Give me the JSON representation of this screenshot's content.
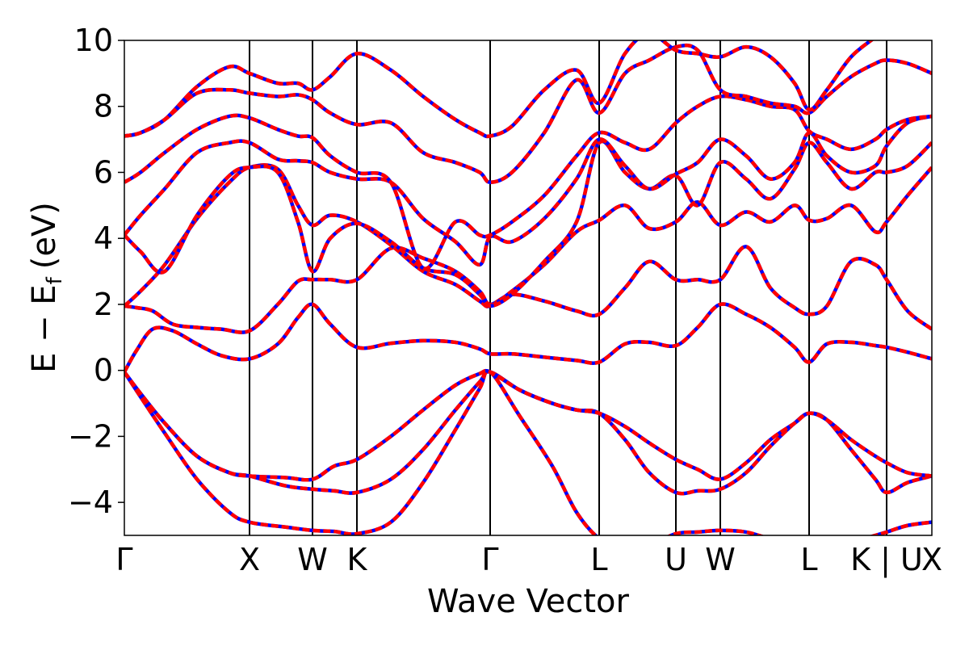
{
  "chart_data": {
    "type": "line",
    "xlabel": "Wave Vector",
    "ylabel_main": "E  −  E",
    "ylabel_sub": "f",
    "ylabel_unit": "(eV)",
    "ylim": [
      -5,
      10
    ],
    "yticks": [
      {
        "value": 10,
        "label": "10"
      },
      {
        "value": 8,
        "label": "8"
      },
      {
        "value": 6,
        "label": "6"
      },
      {
        "value": 4,
        "label": "4"
      },
      {
        "value": 2,
        "label": "2"
      },
      {
        "value": 0,
        "label": "0"
      },
      {
        "value": -2,
        "label": "−2"
      },
      {
        "value": -4,
        "label": "−4"
      }
    ],
    "xlim": [
      0,
      1000
    ],
    "high_symmetry_points": [
      {
        "label": "Γ",
        "x": 0
      },
      {
        "label": "X",
        "x": 155
      },
      {
        "label": "W",
        "x": 233
      },
      {
        "label": "K",
        "x": 288
      },
      {
        "label": "Γ",
        "x": 453
      },
      {
        "label": "L",
        "x": 588
      },
      {
        "label": "U",
        "x": 683
      },
      {
        "label": "W",
        "x": 738
      },
      {
        "label": "L",
        "x": 848
      },
      {
        "label": "K | U",
        "x": 944
      },
      {
        "label": "X",
        "x": 1000
      }
    ],
    "series_style": [
      {
        "color": "#0000ff",
        "linestyle": "solid"
      },
      {
        "color": "#ff0000",
        "linestyle": "dashed"
      }
    ],
    "bands": [
      {
        "x": [
          0,
          20,
          50,
          90,
          130,
          155,
          200,
          233,
          260,
          288,
          330,
          370,
          410,
          440,
          453,
          490,
          530,
          560,
          588,
          620,
          650,
          683,
          710,
          738,
          770,
          800,
          830,
          848,
          870,
          900,
          930,
          944,
          970,
          1000
        ],
        "y": [
          -0.05,
          -0.8,
          -1.9,
          -3.3,
          -4.3,
          -4.6,
          -4.75,
          -4.85,
          -4.88,
          -4.95,
          -4.6,
          -3.4,
          -1.8,
          -0.55,
          -0.05,
          -1.4,
          -2.9,
          -4.3,
          -5.1,
          -5.5,
          -5.3,
          -4.95,
          -4.9,
          -4.85,
          -4.9,
          -5.1,
          -5.2,
          -5.2,
          -5.2,
          -5.2,
          -5.0,
          -4.9,
          -4.7,
          -4.6
        ]
      },
      {
        "x": [
          0,
          20,
          50,
          90,
          130,
          155,
          200,
          233,
          260,
          288,
          330,
          370,
          410,
          440,
          453,
          490,
          530,
          560,
          588,
          620,
          650,
          683,
          710,
          738,
          770,
          800,
          830,
          848,
          870,
          900,
          930,
          944,
          970,
          1000
        ],
        "y": [
          -0.05,
          -0.7,
          -1.6,
          -2.6,
          -3.1,
          -3.2,
          -3.5,
          -3.6,
          -3.65,
          -3.7,
          -3.3,
          -2.4,
          -1.2,
          -0.35,
          -0.05,
          -0.6,
          -1.0,
          -1.2,
          -1.3,
          -2.1,
          -3.1,
          -3.7,
          -3.65,
          -3.6,
          -3.1,
          -2.3,
          -1.6,
          -1.3,
          -1.5,
          -2.4,
          -3.3,
          -3.7,
          -3.4,
          -3.2
        ]
      },
      {
        "x": [
          0,
          20,
          50,
          90,
          130,
          155,
          200,
          233,
          260,
          288,
          330,
          370,
          410,
          440,
          453,
          490,
          530,
          560,
          588,
          620,
          650,
          683,
          710,
          738,
          770,
          800,
          830,
          848,
          870,
          900,
          930,
          944,
          970,
          1000
        ],
        "y": [
          -0.05,
          -0.7,
          -1.6,
          -2.6,
          -3.1,
          -3.2,
          -3.25,
          -3.3,
          -2.9,
          -2.7,
          -2.0,
          -1.2,
          -0.45,
          -0.1,
          -0.05,
          -0.6,
          -1.0,
          -1.2,
          -1.3,
          -1.7,
          -2.2,
          -2.7,
          -3.0,
          -3.3,
          -2.8,
          -2.1,
          -1.6,
          -1.3,
          -1.5,
          -2.1,
          -2.6,
          -2.8,
          -3.1,
          -3.2
        ]
      },
      {
        "x": [
          0,
          15,
          35,
          60,
          90,
          120,
          155,
          190,
          215,
          233,
          255,
          288,
          330,
          370,
          410,
          440,
          453,
          480,
          520,
          560,
          588,
          620,
          650,
          683,
          710,
          738,
          770,
          800,
          830,
          848,
          870,
          900,
          930,
          944,
          970,
          1000
        ],
        "y": [
          -0.05,
          0.6,
          1.25,
          1.2,
          0.8,
          0.45,
          0.35,
          0.8,
          1.6,
          2.0,
          1.4,
          0.7,
          0.82,
          0.9,
          0.85,
          0.65,
          0.5,
          0.5,
          0.4,
          0.3,
          0.25,
          0.8,
          0.85,
          0.75,
          1.3,
          2.0,
          1.7,
          1.3,
          0.7,
          0.25,
          0.8,
          0.85,
          0.75,
          0.7,
          0.55,
          0.35
        ]
      },
      {
        "x": [
          0,
          15,
          35,
          60,
          90,
          120,
          155,
          190,
          215,
          233,
          255,
          288,
          330,
          370,
          410,
          440,
          453,
          480,
          520,
          560,
          588,
          620,
          650,
          683,
          710,
          738,
          770,
          800,
          830,
          848,
          870,
          900,
          930,
          944,
          970,
          1000
        ],
        "y": [
          1.95,
          1.9,
          1.8,
          1.4,
          1.3,
          1.25,
          1.2,
          2.0,
          2.7,
          2.75,
          2.75,
          2.75,
          3.7,
          3.4,
          3.0,
          2.4,
          2.0,
          2.3,
          2.1,
          1.8,
          1.7,
          2.5,
          3.3,
          2.75,
          2.75,
          2.75,
          3.75,
          2.5,
          1.9,
          1.7,
          1.95,
          3.3,
          3.2,
          2.75,
          1.8,
          1.25
        ]
      },
      {
        "x": [
          0,
          20,
          50,
          90,
          130,
          155,
          190,
          215,
          233,
          255,
          288,
          330,
          370,
          410,
          440,
          453,
          480,
          520,
          560,
          588,
          620,
          650,
          683,
          710,
          738,
          770,
          800,
          830,
          848,
          870,
          900,
          930,
          944,
          970,
          1000
        ],
        "y": [
          1.95,
          2.4,
          3.2,
          4.6,
          5.7,
          6.15,
          6.1,
          5.0,
          4.4,
          4.7,
          4.5,
          3.8,
          3.0,
          2.6,
          2.1,
          1.95,
          2.4,
          3.2,
          4.2,
          4.55,
          5.0,
          4.3,
          4.5,
          5.1,
          4.4,
          4.8,
          4.5,
          5.0,
          4.55,
          4.6,
          5.0,
          4.2,
          4.5,
          5.3,
          6.15
        ]
      },
      {
        "x": [
          0,
          20,
          50,
          90,
          130,
          155,
          190,
          215,
          233,
          255,
          288,
          330,
          370,
          410,
          440,
          453,
          480,
          520,
          560,
          588,
          620,
          650,
          683,
          710,
          738,
          770,
          800,
          830,
          848,
          870,
          900,
          930,
          944,
          970,
          1000
        ],
        "y": [
          4.1,
          3.6,
          3.0,
          4.7,
          5.9,
          6.15,
          6.0,
          4.5,
          3.0,
          4.0,
          4.45,
          3.9,
          3.1,
          2.9,
          2.3,
          1.95,
          2.3,
          3.3,
          4.5,
          6.9,
          6.0,
          5.5,
          5.9,
          5.0,
          6.3,
          5.8,
          5.2,
          6.1,
          6.9,
          6.3,
          5.5,
          6.0,
          6.0,
          6.2,
          6.9
        ]
      },
      {
        "x": [
          0,
          20,
          50,
          90,
          130,
          155,
          190,
          215,
          233,
          255,
          288,
          330,
          370,
          410,
          440,
          453,
          480,
          520,
          560,
          588,
          620,
          650,
          683,
          710,
          738,
          770,
          800,
          830,
          848,
          870,
          900,
          930,
          944,
          970,
          1000
        ],
        "y": [
          4.1,
          4.7,
          5.5,
          6.6,
          6.9,
          6.9,
          6.4,
          6.35,
          6.3,
          6.0,
          5.8,
          5.7,
          4.6,
          3.9,
          3.2,
          4.05,
          3.9,
          4.6,
          5.8,
          7.0,
          6.2,
          5.5,
          5.95,
          6.3,
          7.0,
          6.5,
          5.8,
          6.3,
          7.2,
          6.5,
          6.0,
          6.2,
          6.8,
          7.5,
          7.7
        ]
      },
      {
        "x": [
          0,
          20,
          50,
          90,
          130,
          155,
          190,
          215,
          233,
          255,
          288,
          330,
          370,
          410,
          440,
          453,
          480,
          520,
          560,
          588,
          620,
          650,
          683,
          710,
          738,
          770,
          800,
          830,
          848,
          870,
          900,
          930,
          944,
          970,
          1000
        ],
        "y": [
          5.7,
          6.0,
          6.6,
          7.3,
          7.7,
          7.65,
          7.3,
          7.1,
          7.05,
          6.5,
          6.0,
          5.7,
          3.1,
          4.5,
          4.1,
          4.1,
          4.5,
          5.3,
          6.5,
          7.2,
          6.9,
          6.7,
          7.5,
          8.0,
          8.3,
          8.2,
          8.0,
          7.9,
          7.25,
          7.0,
          6.7,
          7.0,
          7.3,
          7.6,
          7.7
        ]
      },
      {
        "x": [
          0,
          20,
          50,
          90,
          130,
          155,
          190,
          215,
          233,
          255,
          288,
          330,
          370,
          410,
          440,
          453,
          480,
          520,
          560,
          588,
          620,
          650,
          683,
          710,
          738,
          770,
          800,
          830,
          848,
          870,
          900,
          930,
          944,
          970,
          1000
        ],
        "y": [
          7.1,
          7.2,
          7.6,
          8.4,
          8.5,
          8.4,
          8.3,
          8.35,
          8.2,
          7.8,
          7.45,
          7.5,
          6.6,
          6.3,
          6.0,
          5.7,
          6.0,
          7.2,
          8.8,
          7.8,
          9.0,
          9.4,
          9.8,
          9.7,
          8.5,
          8.3,
          8.1,
          8.0,
          7.8,
          8.3,
          8.9,
          9.3,
          9.4,
          9.3,
          9.0
        ]
      },
      {
        "x": [
          0,
          20,
          50,
          90,
          130,
          155,
          190,
          215,
          233,
          255,
          288,
          330,
          370,
          410,
          440,
          453,
          480,
          520,
          560,
          588,
          620,
          650,
          683,
          710,
          738,
          770,
          800,
          830,
          848,
          870,
          900,
          930,
          944,
          970,
          1000
        ],
        "y": [
          7.1,
          7.2,
          7.6,
          8.6,
          9.2,
          9.0,
          8.7,
          8.7,
          8.5,
          8.9,
          9.6,
          9.1,
          8.3,
          7.6,
          7.2,
          7.1,
          7.4,
          8.5,
          9.1,
          8.1,
          9.6,
          10.2,
          9.7,
          9.6,
          9.5,
          9.8,
          9.5,
          8.7,
          7.9,
          8.5,
          9.5,
          10.1,
          10.4,
          10.5,
          10.3
        ]
      }
    ]
  }
}
